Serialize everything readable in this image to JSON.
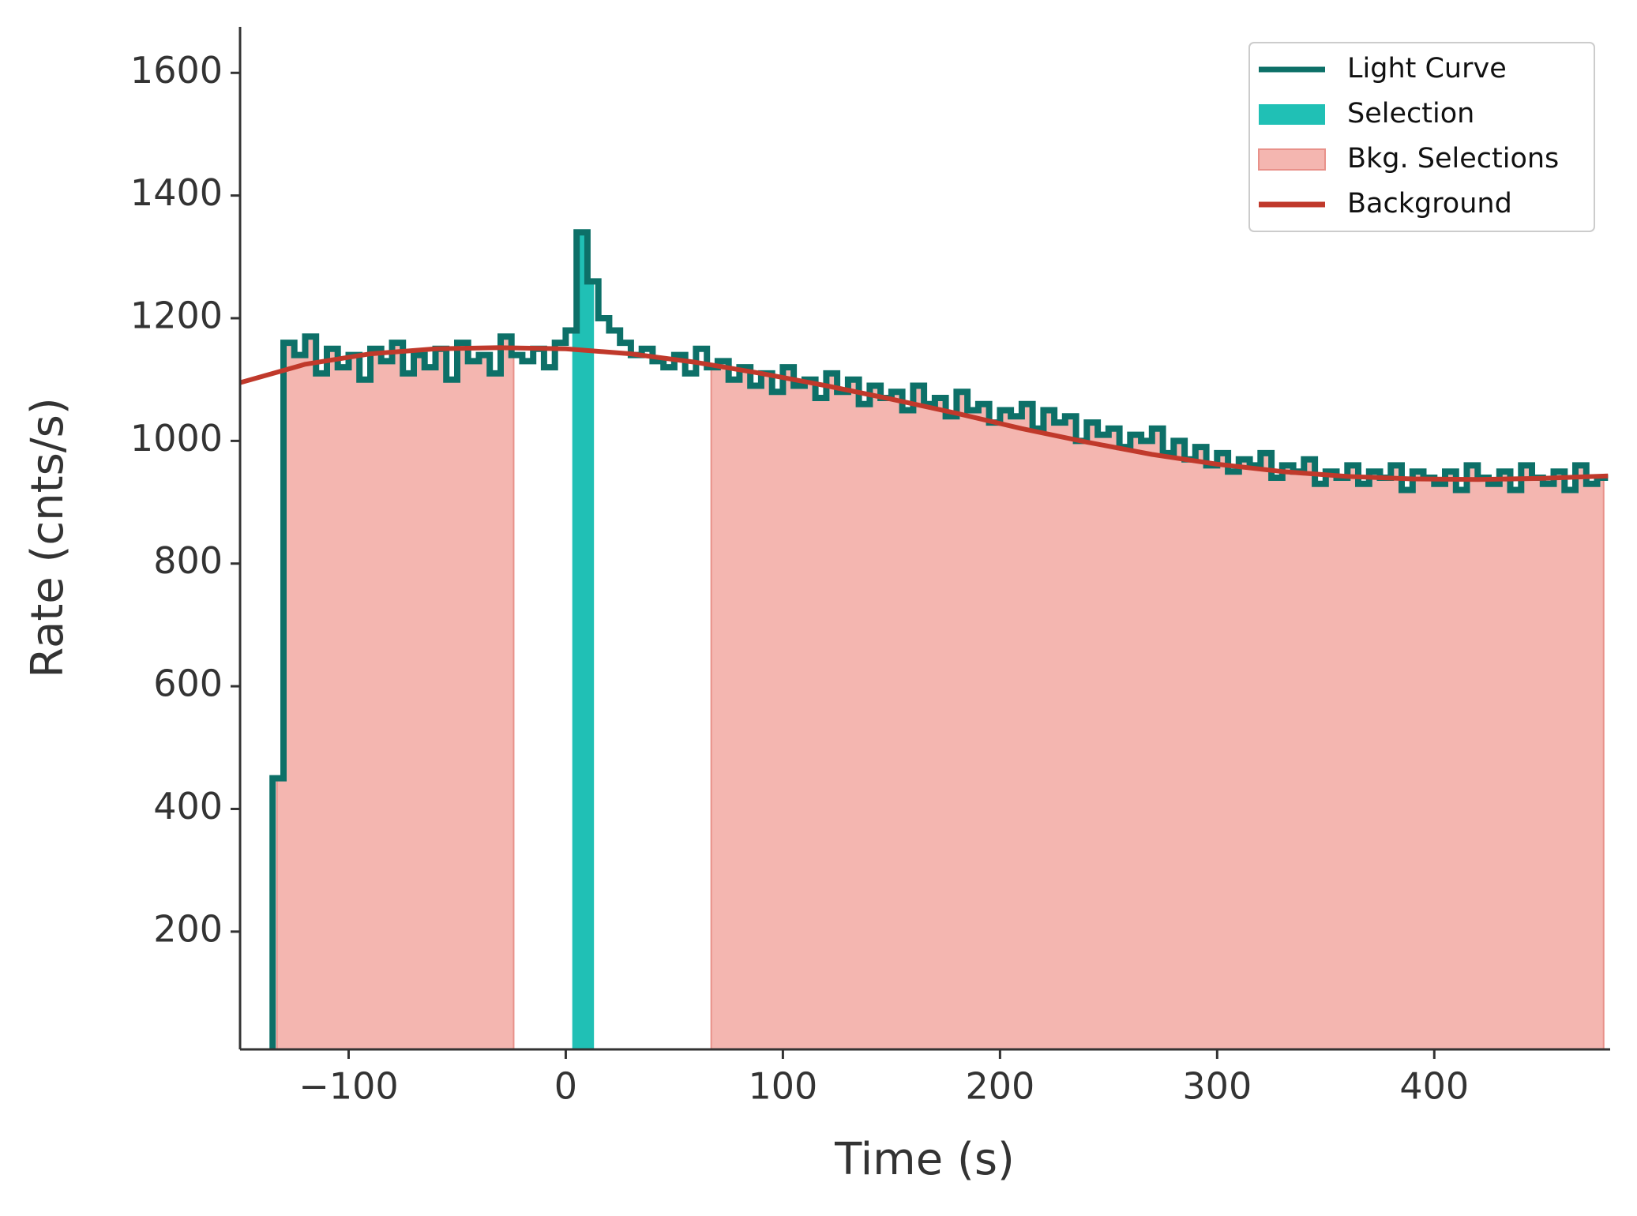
{
  "chart_data": {
    "type": "line",
    "xlabel": "Time (s)",
    "ylabel": "Rate (cnts/s)",
    "xlim": [
      -150,
      481
    ],
    "ylim": [
      8,
      1675
    ],
    "xticks": [
      {
        "value": -100,
        "label": "−100"
      },
      0,
      100,
      200,
      300,
      400
    ],
    "yticks": [
      200,
      400,
      600,
      800,
      1000,
      1200,
      1400,
      1600
    ],
    "legend": "upper right",
    "series": [
      {
        "name": "Light Curve",
        "color": "#0d7068",
        "x": [
          -135,
          -130,
          -125,
          -120,
          -115,
          -110,
          -105,
          -100,
          -95,
          -90,
          -85,
          -80,
          -75,
          -70,
          -65,
          -60,
          -55,
          -50,
          -45,
          -40,
          -35,
          -30,
          -25,
          -20,
          -15,
          -10,
          -5,
          0,
          5,
          10,
          15,
          20,
          25,
          30,
          35,
          40,
          45,
          50,
          55,
          60,
          65,
          70,
          75,
          80,
          85,
          90,
          95,
          100,
          105,
          110,
          115,
          120,
          125,
          130,
          135,
          140,
          145,
          150,
          155,
          160,
          165,
          170,
          175,
          180,
          185,
          190,
          195,
          200,
          205,
          210,
          215,
          220,
          225,
          230,
          235,
          240,
          245,
          250,
          255,
          260,
          265,
          270,
          275,
          280,
          285,
          290,
          295,
          300,
          305,
          310,
          315,
          320,
          325,
          330,
          335,
          340,
          345,
          350,
          355,
          360,
          365,
          370,
          375,
          380,
          385,
          390,
          395,
          400,
          405,
          410,
          415,
          420,
          425,
          430,
          435,
          440,
          445,
          450,
          455,
          460,
          465,
          470,
          475,
          480
        ],
        "values": [
          450,
          1160,
          1140,
          1170,
          1110,
          1150,
          1120,
          1140,
          1100,
          1150,
          1130,
          1160,
          1110,
          1140,
          1120,
          1150,
          1100,
          1160,
          1130,
          1140,
          1110,
          1170,
          1140,
          1130,
          1150,
          1120,
          1160,
          1180,
          1340,
          1260,
          1200,
          1180,
          1160,
          1140,
          1150,
          1130,
          1120,
          1140,
          1110,
          1150,
          1120,
          1130,
          1100,
          1120,
          1090,
          1110,
          1080,
          1120,
          1090,
          1100,
          1070,
          1110,
          1080,
          1100,
          1060,
          1090,
          1070,
          1080,
          1050,
          1090,
          1060,
          1070,
          1040,
          1080,
          1050,
          1060,
          1030,
          1050,
          1040,
          1060,
          1020,
          1050,
          1030,
          1040,
          1000,
          1030,
          1010,
          1020,
          990,
          1010,
          1000,
          1020,
          980,
          1000,
          970,
          990,
          960,
          980,
          950,
          970,
          960,
          980,
          940,
          960,
          950,
          970,
          930,
          950,
          940,
          960,
          930,
          950,
          940,
          960,
          920,
          950,
          940,
          930,
          950,
          920,
          960,
          940,
          930,
          950,
          920,
          960,
          940,
          930,
          950,
          920,
          960,
          930,
          940,
          940
        ]
      },
      {
        "name": "Background",
        "color": "#c0392b",
        "x": [
          -150,
          -120,
          -90,
          -60,
          -30,
          0,
          30,
          60,
          90,
          120,
          150,
          180,
          210,
          240,
          270,
          300,
          330,
          360,
          390,
          420,
          450,
          480
        ],
        "values": [
          1095,
          1125,
          1142,
          1150,
          1152,
          1150,
          1142,
          1128,
          1110,
          1090,
          1068,
          1045,
          1020,
          998,
          978,
          962,
          950,
          942,
          938,
          937,
          939,
          943
        ]
      }
    ],
    "selection": {
      "name": "Selection",
      "color": "#20c0b5",
      "range": [
        3,
        13
      ]
    },
    "bkg_selections": {
      "name": "Bkg. Selections",
      "color": "#f4b6b0",
      "edge": "#e8918a",
      "ranges": [
        [
          -133,
          -24
        ],
        [
          67,
          478
        ]
      ]
    }
  }
}
